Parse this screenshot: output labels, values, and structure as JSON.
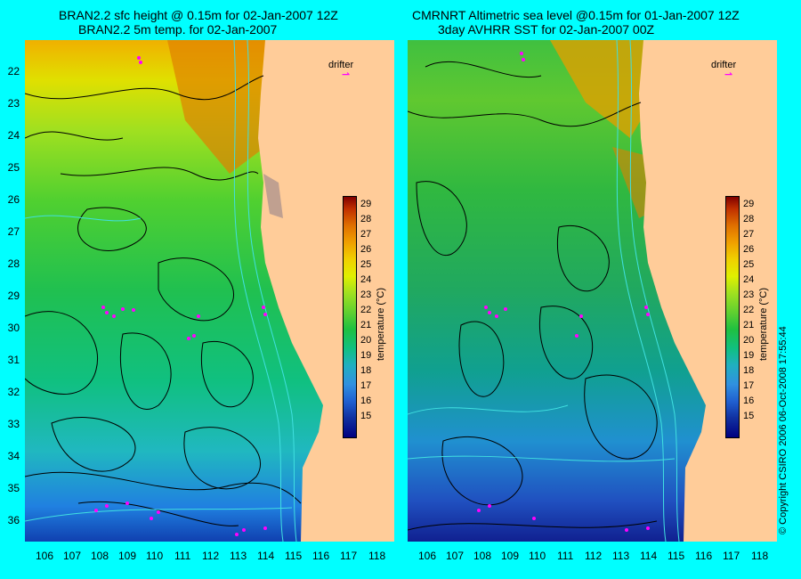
{
  "left_panel": {
    "title_line1": "BRAN2.2 sfc height @ 0.15m for 02-Jan-2007 12Z",
    "title_line2": "BRAN2.2 5m temp. for 02-Jan-2007",
    "drifter_label": "drifter"
  },
  "right_panel": {
    "title_line1": "CMRNRT Altimetric sea level  @0.15m  for 01-Jan-2007 12Z",
    "title_line2": "3day AVHRR SST for 02-Jan-2007 00Z",
    "drifter_label": "drifter"
  },
  "latitude_ticks": [
    "22",
    "23",
    "24",
    "25",
    "26",
    "27",
    "28",
    "29",
    "30",
    "31",
    "32",
    "33",
    "34",
    "35",
    "36"
  ],
  "longitude_ticks": [
    "106",
    "107",
    "108",
    "109",
    "110",
    "111",
    "112",
    "113",
    "114",
    "115",
    "116",
    "117",
    "118"
  ],
  "colorbar": {
    "title": "temperature (°C)",
    "ticks": [
      "29",
      "28",
      "27",
      "26",
      "25",
      "24",
      "23",
      "22",
      "21",
      "20",
      "19",
      "18",
      "17",
      "16",
      "15"
    ]
  },
  "copyright": "© Copyright CSIRO 2006    06-Oct-2008 17:55:44",
  "colors": {
    "background": "#00ffff",
    "land": "#ffcc99",
    "drifter": "#ff00ff",
    "contour": "#000000",
    "bathymetry": "#40e0e0"
  }
}
